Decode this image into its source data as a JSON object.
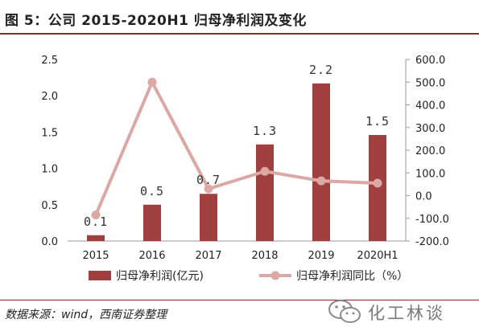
{
  "figure_title": "图 5：公司 2015-2020H1 归母净利润及变化",
  "source_note": "数据来源：wind，西南证券整理",
  "watermark_text": "化工林谈",
  "colors": {
    "bar": "#a0403e",
    "line": "#dba8a6",
    "accent_rule": "#8a2a2a"
  },
  "chart_data": {
    "type": "bar",
    "categories": [
      "2015",
      "2016",
      "2017",
      "2018",
      "2019",
      "2020H1"
    ],
    "series": [
      {
        "name": "归母净利润(亿元)",
        "type": "bar",
        "axis": "left",
        "values": [
          0.08,
          0.5,
          0.65,
          1.33,
          2.17,
          1.46
        ],
        "labels": [
          "0.1",
          "0.5",
          "0.7",
          "1.3",
          "2.2",
          "1.5"
        ]
      },
      {
        "name": "归母净利润同比（%）",
        "type": "line",
        "axis": "right",
        "values": [
          -85,
          500,
          30,
          107,
          65,
          55
        ]
      }
    ],
    "left_axis": {
      "min": 0,
      "max": 2.5,
      "ticks": [
        "0.0",
        "0.5",
        "1.0",
        "1.5",
        "2.0",
        "2.5"
      ]
    },
    "right_axis": {
      "min": -200,
      "max": 600,
      "ticks": [
        "-200.0",
        "-100.0",
        "0.0",
        "100.0",
        "200.0",
        "300.0",
        "400.0",
        "500.0",
        "600.0"
      ]
    },
    "legend_position": "bottom",
    "grid": false
  }
}
